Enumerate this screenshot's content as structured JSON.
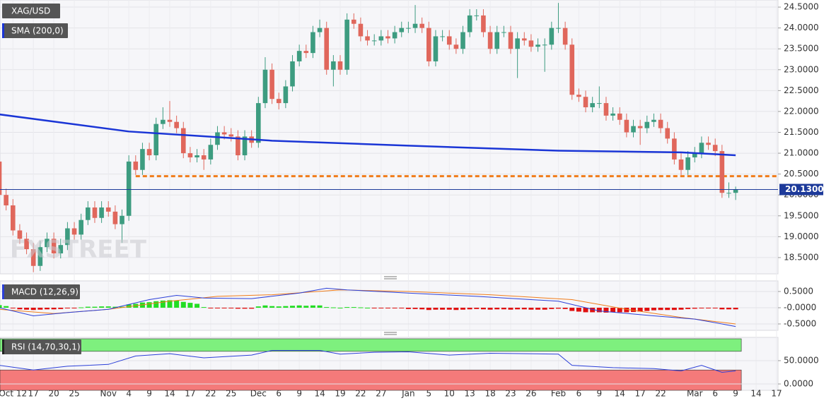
{
  "chart_data": [
    {
      "type": "candlestick",
      "symbol": "XAG/USD",
      "watermark": "FXSTREET",
      "categories": [
        null,
        null,
        "Oct 12",
        null,
        null,
        "17",
        null,
        null,
        "20",
        null,
        null,
        "25",
        null,
        null,
        null,
        null,
        "Nov",
        null,
        null,
        "4",
        null,
        null,
        "9",
        null,
        null,
        "14",
        null,
        null,
        "17",
        null,
        null,
        "22",
        null,
        null,
        "25",
        null,
        null,
        null,
        "Dec",
        null,
        null,
        "6",
        null,
        null,
        "9",
        null,
        null,
        "14",
        null,
        null,
        "19",
        null,
        null,
        "22",
        null,
        null,
        "27",
        null,
        null,
        null,
        "Jan",
        null,
        null,
        "5",
        null,
        null,
        "10",
        null,
        null,
        "13",
        null,
        null,
        "18",
        null,
        null,
        "23",
        null,
        null,
        "26",
        null,
        null,
        null,
        "Feb",
        null,
        null,
        "6",
        null,
        null,
        "9",
        null,
        null,
        "14",
        null,
        null,
        "17",
        null,
        null,
        "22",
        null,
        null,
        null,
        null,
        "Mar",
        null,
        null,
        "6",
        null,
        null,
        "9",
        null,
        null,
        "14",
        null,
        null,
        "17"
      ],
      "ohlc": [
        [
          20.8,
          20.9,
          19.9,
          20.0
        ],
        [
          20.0,
          20.15,
          19.63,
          19.75
        ],
        [
          19.75,
          19.9,
          19.03,
          19.15
        ],
        [
          19.15,
          19.3,
          18.83,
          18.95
        ],
        [
          18.95,
          19.1,
          18.58,
          18.7
        ],
        [
          18.7,
          18.85,
          18.15,
          18.3
        ],
        [
          18.3,
          18.9,
          18.18,
          18.75
        ],
        [
          18.75,
          19.1,
          18.63,
          18.95
        ],
        [
          18.95,
          19.1,
          18.48,
          18.6
        ],
        [
          18.6,
          18.95,
          18.48,
          18.8
        ],
        [
          18.8,
          19.35,
          18.68,
          19.2
        ],
        [
          19.2,
          19.35,
          18.93,
          19.05
        ],
        [
          19.05,
          19.55,
          18.93,
          19.4
        ],
        [
          19.4,
          19.85,
          19.28,
          19.7
        ],
        [
          19.7,
          19.85,
          19.33,
          19.45
        ],
        [
          19.45,
          19.85,
          19.33,
          19.7
        ],
        [
          19.7,
          19.85,
          19.48,
          19.6
        ],
        [
          19.6,
          19.75,
          19.18,
          19.3
        ],
        [
          19.3,
          19.65,
          18.85,
          19.5
        ],
        [
          19.5,
          20.95,
          19.38,
          20.8
        ],
        [
          20.8,
          20.95,
          20.48,
          20.6
        ],
        [
          20.6,
          21.25,
          20.48,
          21.1
        ],
        [
          21.1,
          21.25,
          20.83,
          20.95
        ],
        [
          20.95,
          21.85,
          20.83,
          21.7
        ],
        [
          21.7,
          22.1,
          21.58,
          21.8
        ],
        [
          21.8,
          22.25,
          21.63,
          21.75
        ],
        [
          21.75,
          21.9,
          21.48,
          21.6
        ],
        [
          21.6,
          21.75,
          20.88,
          21.0
        ],
        [
          21.0,
          21.15,
          20.78,
          20.9
        ],
        [
          20.9,
          21.1,
          20.78,
          20.95
        ],
        [
          20.95,
          21.1,
          20.6,
          20.85
        ],
        [
          20.85,
          21.35,
          20.73,
          21.2
        ],
        [
          21.2,
          21.65,
          21.08,
          21.5
        ],
        [
          21.5,
          21.65,
          21.33,
          21.45
        ],
        [
          21.45,
          21.6,
          21.28,
          21.4
        ],
        [
          21.4,
          21.55,
          20.83,
          20.95
        ],
        [
          20.95,
          21.55,
          20.83,
          21.4
        ],
        [
          21.4,
          21.55,
          21.13,
          21.25
        ],
        [
          21.25,
          22.35,
          21.13,
          22.2
        ],
        [
          22.2,
          23.3,
          22.08,
          23.0
        ],
        [
          23.0,
          23.15,
          22.18,
          22.3
        ],
        [
          22.3,
          22.45,
          22.05,
          22.2
        ],
        [
          22.2,
          22.75,
          22.08,
          22.6
        ],
        [
          22.6,
          23.35,
          22.48,
          23.2
        ],
        [
          23.2,
          23.6,
          23.08,
          23.45
        ],
        [
          23.45,
          23.6,
          23.28,
          23.4
        ],
        [
          23.4,
          24.05,
          23.28,
          23.9
        ],
        [
          23.9,
          24.2,
          23.78,
          24.0
        ],
        [
          24.0,
          24.15,
          22.88,
          23.0
        ],
        [
          23.0,
          23.35,
          22.6,
          23.2
        ],
        [
          23.2,
          23.35,
          22.88,
          23.0
        ],
        [
          23.0,
          24.35,
          22.88,
          24.2
        ],
        [
          24.2,
          24.35,
          23.98,
          24.1
        ],
        [
          24.1,
          24.25,
          23.68,
          23.8
        ],
        [
          23.8,
          23.95,
          23.58,
          23.7
        ],
        [
          23.7,
          23.85,
          23.58,
          23.7
        ],
        [
          23.7,
          23.95,
          23.58,
          23.8
        ],
        [
          23.8,
          23.95,
          23.63,
          23.75
        ],
        [
          23.75,
          24.05,
          23.63,
          23.9
        ],
        [
          23.9,
          24.15,
          23.78,
          24.0
        ],
        [
          24.0,
          24.15,
          23.88,
          24.0
        ],
        [
          24.0,
          24.55,
          23.88,
          24.1
        ],
        [
          24.1,
          24.25,
          23.88,
          24.0
        ],
        [
          24.0,
          24.15,
          23.08,
          23.2
        ],
        [
          23.2,
          23.95,
          23.08,
          23.8
        ],
        [
          23.8,
          23.95,
          23.68,
          23.8
        ],
        [
          23.8,
          23.95,
          23.48,
          23.6
        ],
        [
          23.6,
          23.75,
          23.38,
          23.5
        ],
        [
          23.5,
          24.05,
          23.38,
          23.9
        ],
        [
          23.9,
          24.45,
          23.78,
          24.3
        ],
        [
          24.3,
          24.45,
          24.18,
          24.3
        ],
        [
          24.3,
          24.45,
          23.78,
          23.9
        ],
        [
          23.9,
          24.05,
          23.38,
          23.5
        ],
        [
          23.5,
          24.05,
          23.38,
          23.9
        ],
        [
          23.9,
          24.05,
          23.78,
          23.9
        ],
        [
          23.9,
          24.05,
          23.38,
          23.5
        ],
        [
          23.5,
          23.9,
          22.8,
          23.75
        ],
        [
          23.75,
          23.9,
          23.58,
          23.7
        ],
        [
          23.7,
          23.85,
          23.43,
          23.55
        ],
        [
          23.55,
          23.75,
          23.43,
          23.6
        ],
        [
          23.6,
          23.75,
          22.95,
          23.6
        ],
        [
          23.6,
          24.15,
          23.48,
          24.0
        ],
        [
          24.0,
          24.6,
          23.88,
          24.0
        ],
        [
          24.0,
          24.15,
          23.48,
          23.6
        ],
        [
          23.6,
          23.75,
          22.28,
          22.4
        ],
        [
          22.4,
          22.55,
          22.23,
          22.35
        ],
        [
          22.35,
          22.5,
          21.98,
          22.1
        ],
        [
          22.1,
          22.35,
          21.98,
          22.2
        ],
        [
          22.2,
          22.6,
          22.08,
          22.2
        ],
        [
          22.2,
          22.35,
          21.78,
          21.9
        ],
        [
          21.9,
          22.1,
          21.78,
          21.95
        ],
        [
          21.95,
          22.1,
          21.68,
          21.8
        ],
        [
          21.8,
          21.95,
          21.38,
          21.5
        ],
        [
          21.5,
          21.8,
          21.38,
          21.65
        ],
        [
          21.65,
          21.8,
          21.2,
          21.6
        ],
        [
          21.6,
          21.9,
          21.48,
          21.75
        ],
        [
          21.75,
          21.95,
          21.63,
          21.8
        ],
        [
          21.8,
          21.95,
          21.48,
          21.6
        ],
        [
          21.6,
          21.75,
          21.23,
          21.35
        ],
        [
          21.35,
          21.5,
          20.73,
          20.85
        ],
        [
          20.85,
          21.0,
          20.48,
          20.6
        ],
        [
          20.6,
          21.05,
          20.48,
          20.9
        ],
        [
          20.9,
          21.15,
          20.78,
          21.0
        ],
        [
          21.0,
          21.4,
          20.88,
          21.25
        ],
        [
          21.25,
          21.4,
          21.08,
          21.2
        ],
        [
          21.2,
          21.35,
          20.93,
          21.05
        ],
        [
          21.05,
          21.2,
          19.93,
          20.05
        ],
        [
          20.05,
          20.3,
          19.93,
          20.05
        ],
        [
          20.05,
          20.2,
          19.88,
          20.13
        ],
        null,
        null,
        null,
        null,
        null,
        null
      ],
      "up_color": "#3d9c80",
      "down_color": "#e0675c",
      "ylim": [
        18.11,
        24.67
      ],
      "yticks": [
        {
          "value": 24.5,
          "label": "24.5000"
        },
        {
          "value": 24.0,
          "label": "24.0000"
        },
        {
          "value": 23.5,
          "label": "23.5000"
        },
        {
          "value": 23.0,
          "label": "23.0000"
        },
        {
          "value": 22.5,
          "label": "22.5000"
        },
        {
          "value": 22.0,
          "label": "22.0000"
        },
        {
          "value": 21.5,
          "label": "21.5000"
        },
        {
          "value": 21.0,
          "label": "21.0000"
        },
        {
          "value": 20.5,
          "label": "20.5000"
        },
        {
          "value": 20.0,
          "label": "20.0000"
        },
        {
          "value": 19.5,
          "label": "19.5000"
        },
        {
          "value": 19.0,
          "label": "19.0000"
        },
        {
          "value": 18.5,
          "label": "18.5000"
        }
      ],
      "grid": true,
      "overlays": [
        {
          "name": "SMA (200,0)",
          "color": "#1a35d6",
          "x": [
            0,
            19,
            40,
            60,
            82,
            100,
            108
          ],
          "values": [
            21.93,
            21.52,
            21.3,
            21.18,
            21.06,
            21.02,
            20.95
          ]
        }
      ],
      "level": {
        "value": 20.45,
        "color": "#f07c1a",
        "start": 20
      },
      "last_price": {
        "value": 20.13,
        "label": "20.13000",
        "color": "#1d3a9a"
      }
    },
    {
      "type": "macd",
      "name": "MACD (12,26,9)",
      "histogram": [
        0.08,
        0.05,
        -0.02,
        -0.05,
        -0.06,
        -0.07,
        -0.06,
        -0.05,
        -0.05,
        -0.04,
        -0.02,
        -0.01,
        0.01,
        0.03,
        0.03,
        0.04,
        0.04,
        0.03,
        0.03,
        0.1,
        0.12,
        0.16,
        0.17,
        0.2,
        0.22,
        0.23,
        0.22,
        0.18,
        0.15,
        0.12,
        0.02,
        -0.01,
        -0.02,
        -0.02,
        -0.02,
        -0.03,
        -0.03,
        -0.03,
        0.04,
        0.07,
        0.05,
        0.04,
        0.05,
        0.06,
        0.07,
        0.06,
        0.07,
        0.07,
        0.02,
        0.01,
        0.0,
        0.02,
        0.02,
        0.01,
        0.0,
        -0.01,
        -0.01,
        -0.02,
        -0.02,
        -0.02,
        -0.04,
        -0.04,
        -0.05,
        -0.07,
        -0.06,
        -0.06,
        -0.06,
        -0.07,
        -0.06,
        -0.05,
        -0.04,
        -0.05,
        -0.06,
        -0.05,
        -0.05,
        -0.06,
        -0.05,
        -0.05,
        -0.06,
        -0.06,
        -0.06,
        -0.04,
        -0.03,
        -0.04,
        -0.1,
        -0.12,
        -0.14,
        -0.14,
        -0.14,
        -0.15,
        -0.14,
        -0.14,
        -0.14,
        -0.13,
        -0.12,
        -0.1,
        -0.08,
        -0.07,
        -0.07,
        -0.07,
        -0.06,
        -0.04,
        -0.03,
        -0.02,
        -0.01,
        -0.02,
        -0.05,
        -0.05,
        -0.05,
        null,
        null,
        null,
        null,
        null,
        null
      ],
      "up_color": "#22dd22",
      "down_color": "#e01010",
      "macd": {
        "color": "#2b3fd8",
        "x": [
          0,
          5,
          10,
          16,
          22,
          26,
          30,
          37,
          44,
          48,
          51,
          60,
          70,
          82,
          88,
          96,
          102,
          106,
          108
        ],
        "values": [
          0.0,
          -0.25,
          -0.15,
          -0.05,
          0.25,
          0.38,
          0.3,
          0.28,
          0.45,
          0.6,
          0.55,
          0.45,
          0.35,
          0.2,
          -0.1,
          -0.25,
          -0.35,
          -0.5,
          -0.58
        ]
      },
      "signal": {
        "color": "#f07c1a",
        "x": [
          0,
          8,
          16,
          25,
          32,
          40,
          50,
          60,
          72,
          84,
          92,
          100,
          108
        ],
        "values": [
          -0.05,
          -0.18,
          -0.05,
          0.2,
          0.35,
          0.4,
          0.55,
          0.5,
          0.4,
          0.25,
          -0.05,
          -0.3,
          -0.5
        ]
      },
      "ylim": [
        -0.696,
        0.826
      ],
      "yticks": [
        {
          "value": 0.5,
          "label": "0.5000"
        },
        {
          "value": 0,
          "label": "-0.0000"
        },
        {
          "value": -0.5,
          "label": "-0.5000"
        }
      ]
    },
    {
      "type": "rsi",
      "name": "RSI (14,70,30,1)",
      "color": "#2b3fd8",
      "x": [
        0,
        5,
        10,
        16,
        20,
        25,
        30,
        37,
        40,
        47,
        50,
        55,
        60,
        66,
        72,
        82,
        84,
        90,
        96,
        100,
        103,
        106,
        108
      ],
      "values": [
        40,
        30,
        38,
        42,
        60,
        65,
        56,
        62,
        72,
        72,
        64,
        68,
        69,
        62,
        66,
        64,
        40,
        35,
        33,
        28,
        40,
        25,
        28
      ],
      "overbought": 70,
      "oversold": 30,
      "overbought_color": "#7ef07e",
      "oversold_color": "#f47a7a",
      "ylim": [
        -13.6,
        100
      ],
      "yticks": [
        {
          "value": 50,
          "label": "50.0000"
        },
        {
          "value": 0,
          "label": "0.0000"
        }
      ]
    }
  ]
}
